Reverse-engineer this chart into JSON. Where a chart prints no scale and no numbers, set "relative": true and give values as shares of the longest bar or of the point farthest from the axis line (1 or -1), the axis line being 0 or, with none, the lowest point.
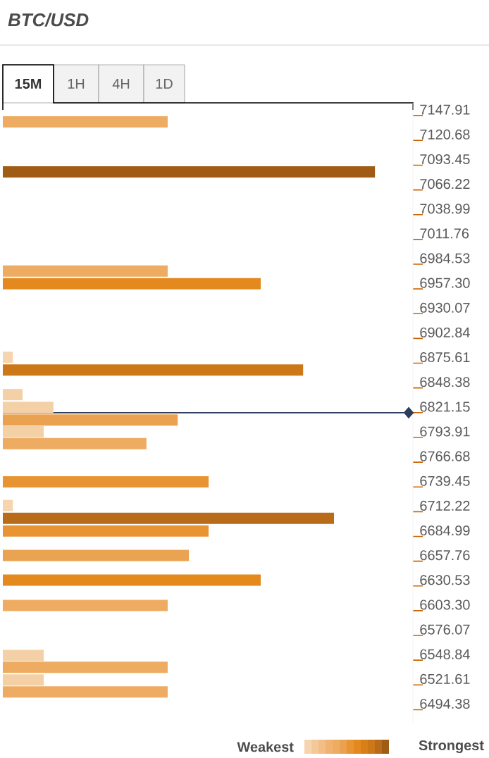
{
  "chart_data": {
    "type": "bar",
    "orientation": "horizontal",
    "relative": true,
    "title": "BTC/USD",
    "x": [
      7141,
      7086,
      6977,
      6963,
      6882,
      6868,
      6841,
      6827,
      6813,
      6800,
      6787,
      6745,
      6719,
      6705,
      6691,
      6664,
      6637,
      6609,
      6554,
      6541,
      6527,
      6514
    ],
    "values": [
      0.443,
      1.0,
      0.443,
      0.693,
      0.027,
      0.807,
      0.053,
      0.136,
      0.47,
      0.11,
      0.386,
      0.553,
      0.027,
      0.89,
      0.553,
      0.5,
      0.693,
      0.443,
      0.11,
      0.443,
      0.11,
      0.443
    ],
    "colors": [
      "#eeac62",
      "#a05c14",
      "#eeac62",
      "#e3891e",
      "#f6d4ae",
      "#cc7718",
      "#f4d0a6",
      "#f4d0a6",
      "#eba250",
      "#f4d0a6",
      "#eeac62",
      "#e89432",
      "#f6d4ae",
      "#b86c1a",
      "#e89432",
      "#eaa350",
      "#e3891e",
      "#eeac62",
      "#f4d0a6",
      "#eeac62",
      "#f4d0a6",
      "#eeac62"
    ],
    "ylim": [
      6480,
      7162
    ],
    "yticks": [
      7147.91,
      7120.68,
      7093.45,
      7066.22,
      7038.99,
      7011.76,
      6984.53,
      {
        "value": 6957.3,
        "label": "6957.30"
      },
      6930.07,
      6902.84,
      6875.61,
      6848.38,
      6821.15,
      6793.91,
      6766.68,
      6739.45,
      6712.22,
      6684.99,
      6657.76,
      6630.53,
      {
        "value": 6603.3,
        "label": "6603.30"
      },
      6576.07,
      6548.84,
      6521.61,
      6494.38
    ],
    "ref_lines": [
      {
        "axis": "y",
        "value": 6821.15,
        "color": "#2c3e5c"
      }
    ],
    "annotations": [
      "15M",
      "1H",
      "4H",
      "1D",
      "Weakest",
      "Strongest"
    ]
  }
}
